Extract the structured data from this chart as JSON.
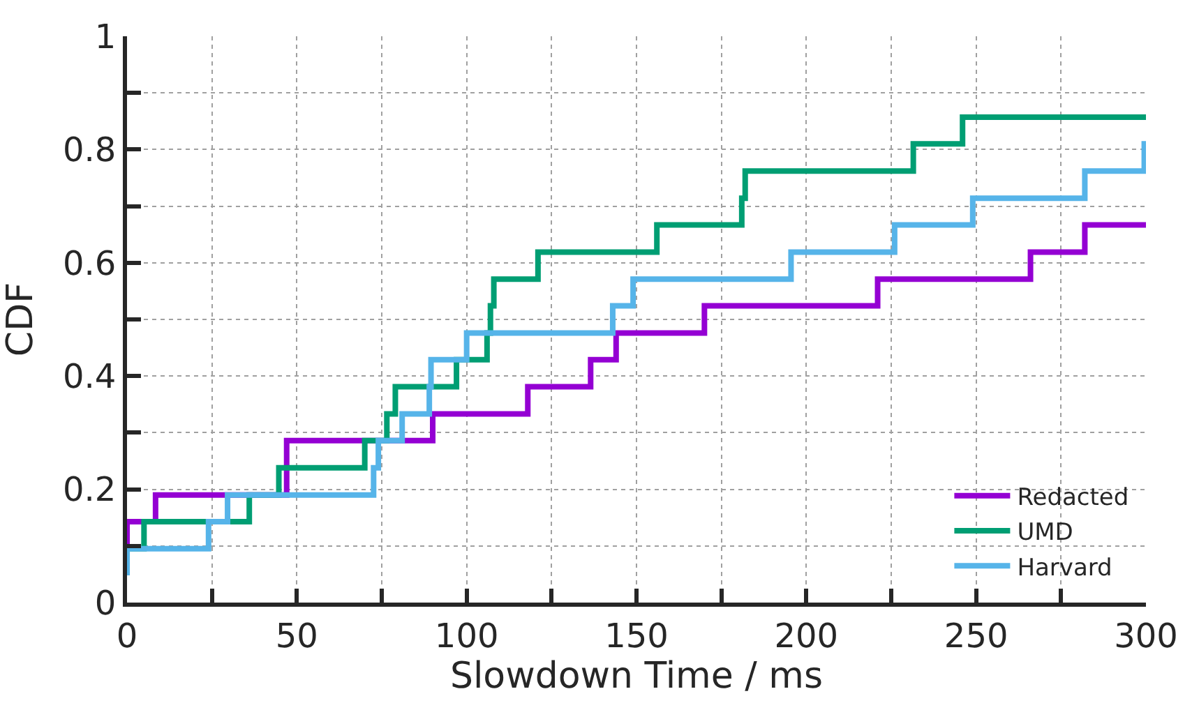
{
  "chart_data": {
    "type": "step",
    "xlabel": "Slowdown Time / ms",
    "ylabel": "CDF",
    "xlim": [
      0,
      300
    ],
    "ylim": [
      0,
      1
    ],
    "xticks": [
      0,
      {
        "value": 25,
        "label": null
      },
      50,
      {
        "value": 75,
        "label": null
      },
      100,
      {
        "value": 125,
        "label": null
      },
      150,
      {
        "value": 175,
        "label": null
      },
      200,
      {
        "value": 225,
        "label": null
      },
      250,
      {
        "value": 275,
        "label": null
      },
      300
    ],
    "yticks": [
      0,
      {
        "value": 0.1,
        "label": null
      },
      0.2,
      {
        "value": 0.3,
        "label": null
      },
      0.4,
      {
        "value": 0.5,
        "label": null
      },
      0.6,
      {
        "value": 0.7,
        "label": null
      },
      0.8,
      {
        "value": 0.9,
        "label": null
      },
      1
    ],
    "grid": true,
    "legend": "bottom right",
    "line_style": "solid",
    "marker": "none",
    "series": [
      {
        "name": "Redacted",
        "color": "#9400d3",
        "x": [
          0,
          0,
          8.4,
          47,
          90,
          118,
          136.5,
          144,
          170,
          221,
          266,
          282,
          300
        ],
        "values": [
          0.095,
          0.143,
          0.19,
          0.286,
          0.333,
          0.381,
          0.429,
          0.476,
          0.524,
          0.571,
          0.619,
          0.667,
          0.667
        ]
      },
      {
        "name": "UMD",
        "color": "#009e73",
        "x": [
          0,
          5,
          36,
          44.7,
          70,
          76.5,
          79,
          97,
          106,
          107,
          108,
          121,
          156,
          181,
          182,
          231.5,
          246,
          300
        ],
        "values": [
          0.095,
          0.143,
          0.19,
          0.238,
          0.286,
          0.333,
          0.381,
          0.429,
          0.476,
          0.524,
          0.571,
          0.619,
          0.667,
          0.714,
          0.762,
          0.81,
          0.857,
          0.857
        ]
      },
      {
        "name": "Harvard",
        "color": "#56b4e9",
        "x": [
          0,
          0,
          24,
          29.6,
          72.6,
          74,
          81,
          89,
          89.5,
          100,
          143,
          149,
          195.5,
          226,
          249,
          282,
          299.5,
          300
        ],
        "values": [
          0.048,
          0.095,
          0.143,
          0.19,
          0.238,
          0.286,
          0.333,
          0.381,
          0.429,
          0.476,
          0.524,
          0.571,
          0.619,
          0.667,
          0.714,
          0.762,
          0.81,
          0.81
        ]
      }
    ]
  }
}
